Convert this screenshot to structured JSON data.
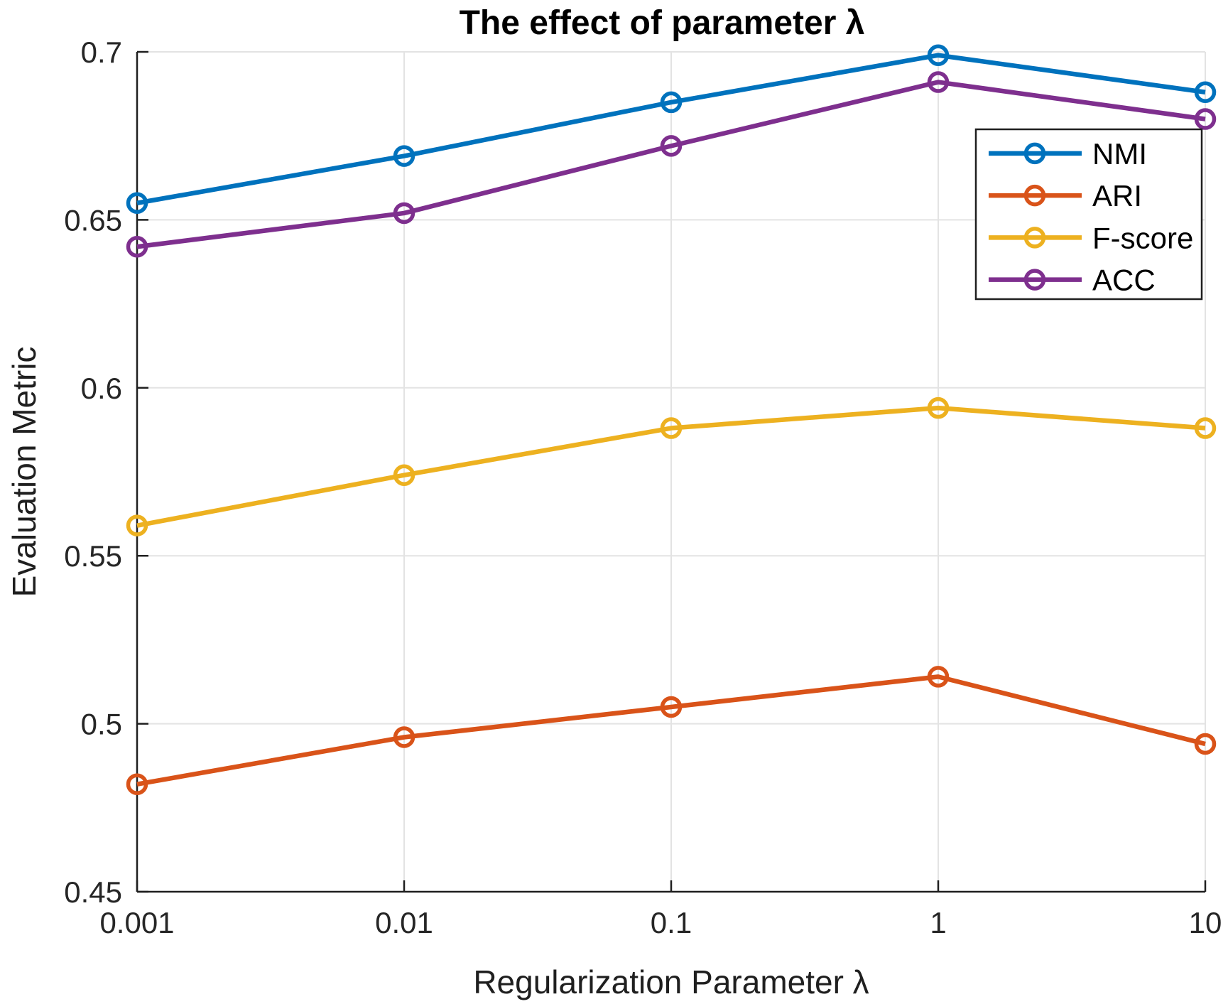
{
  "chart_data": {
    "type": "line",
    "title": "The effect of parameter λ",
    "xlabel": "Regularization Parameter λ",
    "ylabel": "Evaluation Metric",
    "x_scale": "log",
    "x": [
      0.001,
      0.01,
      0.1,
      1,
      10
    ],
    "x_tick_labels": [
      "0.001",
      "0.01",
      "0.1",
      "1",
      "10"
    ],
    "xlim": [
      0.001,
      10
    ],
    "y_ticks": [
      0.45,
      0.5,
      0.55,
      0.6,
      0.65,
      0.7
    ],
    "y_tick_labels": [
      "0.45",
      "0.5",
      "0.55",
      "0.6",
      "0.65",
      "0.7"
    ],
    "ylim": [
      0.45,
      0.7
    ],
    "grid": true,
    "legend_position": "upper-right-inside",
    "marker": "open-circle",
    "series": [
      {
        "name": "NMI",
        "color": "#0072BD",
        "values": [
          0.655,
          0.669,
          0.685,
          0.699,
          0.688
        ]
      },
      {
        "name": "ARI",
        "color": "#D95319",
        "values": [
          0.482,
          0.496,
          0.505,
          0.514,
          0.494
        ]
      },
      {
        "name": "F-score",
        "color": "#EDB120",
        "values": [
          0.559,
          0.574,
          0.588,
          0.594,
          0.588
        ]
      },
      {
        "name": "ACC",
        "color": "#7E2F8E",
        "values": [
          0.642,
          0.652,
          0.672,
          0.691,
          0.68
        ]
      }
    ]
  },
  "colors": {
    "background": "#FFFFFF",
    "axis": "#1f1f1f",
    "grid": "#E3E3E3",
    "tick_label": "#262626",
    "legend_border": "#1f1f1f",
    "legend_background": "#FFFFFF"
  }
}
